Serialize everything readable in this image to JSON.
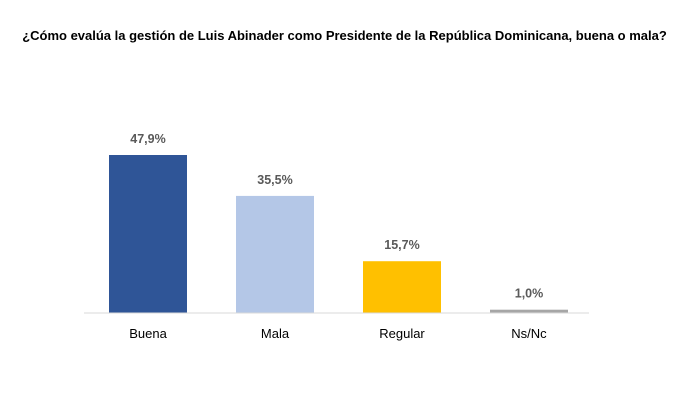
{
  "chart_data": {
    "type": "bar",
    "title": "¿Cómo evalúa la gestión de Luis Abinader como Presidente de la República Dominicana, buena o mala?",
    "xlabel": "",
    "ylabel": "",
    "categories": [
      "Buena",
      "Mala",
      "Regular",
      "Ns/Nc"
    ],
    "values": [
      47.9,
      35.5,
      15.7,
      1.0
    ],
    "data_labels": [
      "47,9%",
      "35,5%",
      "15,7%",
      "1,0%"
    ],
    "colors": [
      "#2F5597",
      "#B4C7E7",
      "#FFC000",
      "#A6A6A6"
    ],
    "ylim": [
      0,
      47.9
    ],
    "grid": false,
    "legend": "none",
    "baseline_color": "#D9D9D9"
  }
}
